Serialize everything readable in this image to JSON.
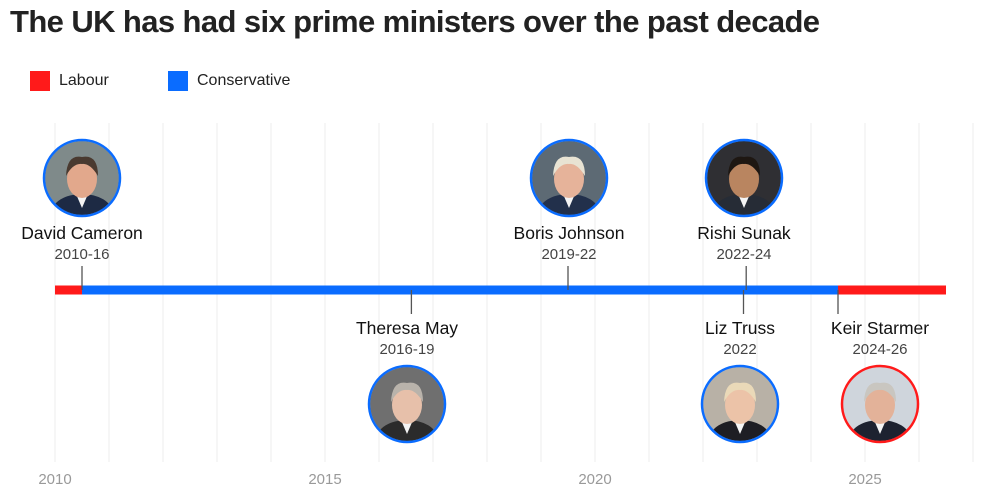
{
  "title": "The UK has had six prime ministers over the past decade",
  "legend": [
    {
      "label": "Labour",
      "color": "#ff1a1a"
    },
    {
      "label": "Conservative",
      "color": "#0a6cff"
    }
  ],
  "chart_data": {
    "type": "timeline",
    "x_ticks": [
      2010,
      2015,
      2020,
      2025
    ],
    "xlim": [
      2010,
      2027
    ],
    "grid": "vertical, yearly",
    "party_segments": [
      {
        "party": "Labour",
        "start": 2010.0,
        "end": 2010.5
      },
      {
        "party": "Conservative",
        "start": 2010.5,
        "end": 2024.5
      },
      {
        "party": "Labour",
        "start": 2024.5,
        "end": 2026.5
      }
    ],
    "prime_ministers": [
      {
        "name": "David Cameron",
        "term": "2010-16",
        "party": "Conservative",
        "position": "above",
        "marker_year": 2010.5
      },
      {
        "name": "Theresa May",
        "term": "2016-19",
        "party": "Conservative",
        "position": "below",
        "marker_year": 2016.6
      },
      {
        "name": "Boris Johnson",
        "term": "2019-22",
        "party": "Conservative",
        "position": "above",
        "marker_year": 2019.5
      },
      {
        "name": "Liz Truss",
        "term": "2022",
        "party": "Conservative",
        "position": "below",
        "marker_year": 2022.75
      },
      {
        "name": "Rishi Sunak",
        "term": "2022-24",
        "party": "Conservative",
        "position": "above",
        "marker_year": 2022.8
      },
      {
        "name": "Keir Starmer",
        "term": "2024-26",
        "party": "Labour",
        "position": "below",
        "marker_year": 2024.5
      }
    ]
  }
}
